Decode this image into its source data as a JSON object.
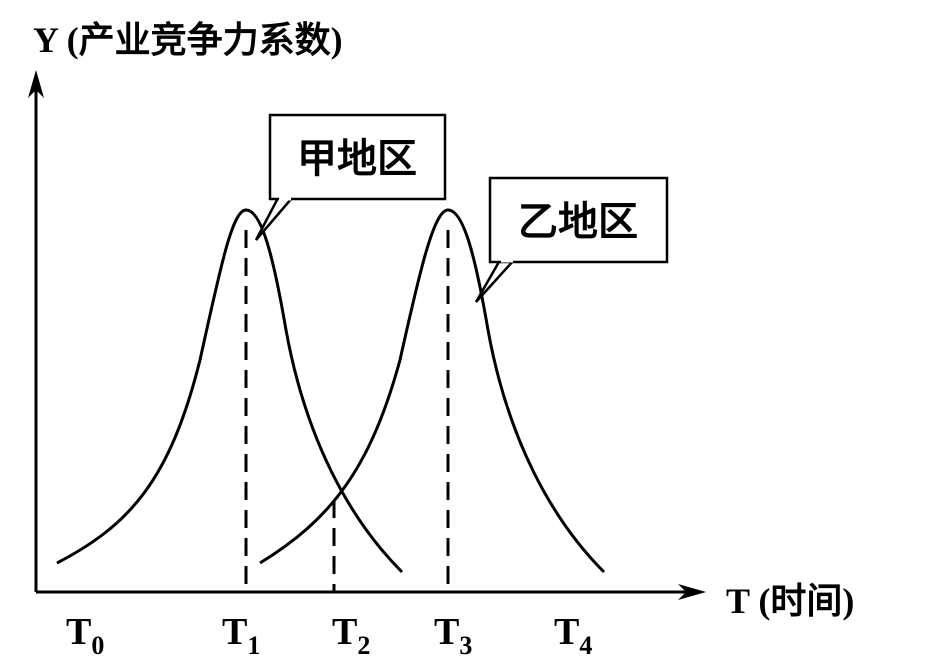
{
  "chart_data": {
    "type": "line",
    "title": "",
    "ylabel": "Y (产业竞争力系数)",
    "xlabel": "T (时间)",
    "x_ticks": [
      {
        "main": "T",
        "sub": "0"
      },
      {
        "main": "T",
        "sub": "1"
      },
      {
        "main": "T",
        "sub": "2"
      },
      {
        "main": "T",
        "sub": "3"
      },
      {
        "main": "T",
        "sub": "4"
      }
    ],
    "series": [
      {
        "name": "甲地区",
        "peak_at": "T1"
      },
      {
        "name": "乙地区",
        "peak_at": "T3"
      }
    ],
    "reference_lines_at": [
      "T1",
      "T2",
      "T3"
    ],
    "grid": false,
    "colors": {
      "ink": "#000000",
      "background": "#ffffff"
    }
  }
}
